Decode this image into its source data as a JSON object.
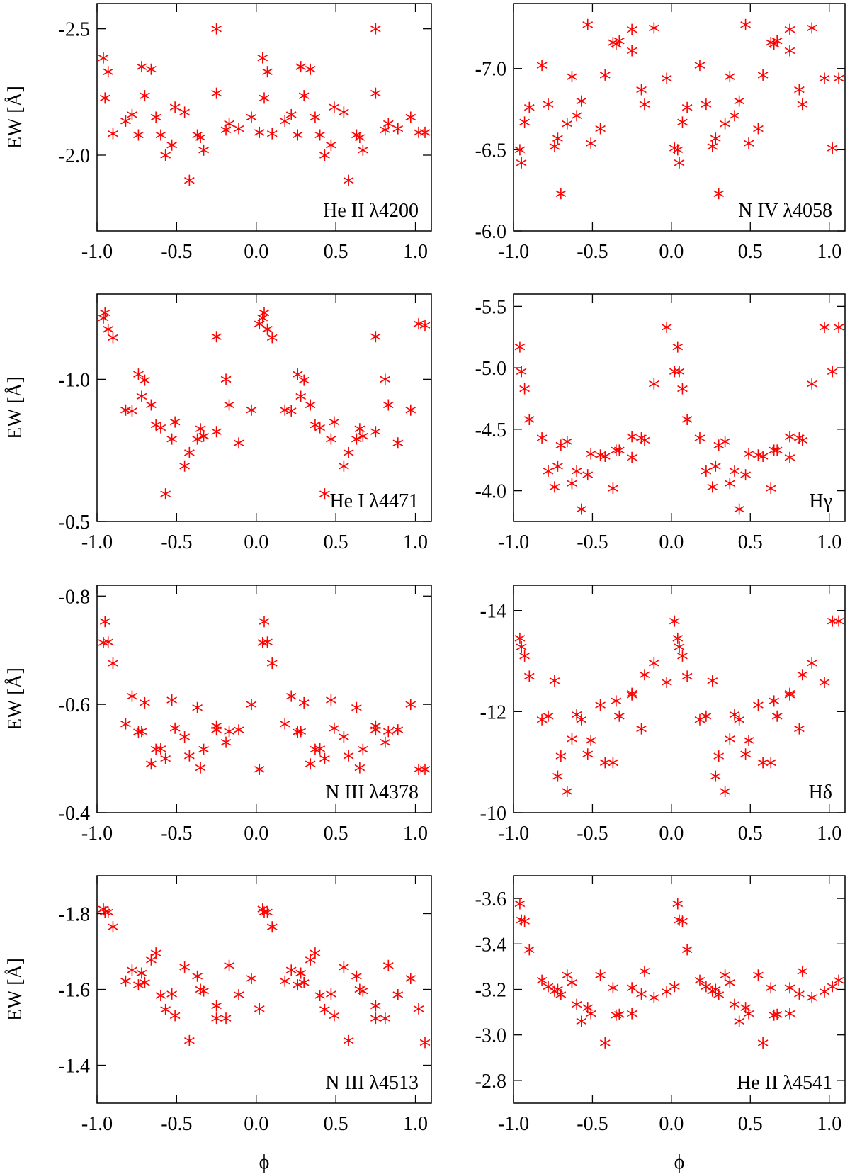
{
  "chart_data": [
    {
      "type": "scatter",
      "annotation": "He II λ4200",
      "ylabel": "EW [Å]",
      "color": "#ff0000",
      "x": [
        -0.96,
        -0.95,
        -0.93,
        -0.9,
        -0.82,
        -0.78,
        -0.74,
        -0.72,
        -0.7,
        -0.66,
        -0.63,
        -0.6,
        -0.57,
        -0.53,
        -0.51,
        -0.45,
        -0.42,
        -0.37,
        -0.35,
        -0.33,
        -0.25,
        -0.25,
        -0.19,
        -0.17,
        -0.11,
        -0.03,
        0.02,
        0.04,
        0.05,
        0.07,
        0.1,
        0.18,
        0.22,
        0.26,
        0.28,
        0.3,
        0.34,
        0.37,
        0.4,
        0.43,
        0.47,
        0.49,
        0.55,
        0.58,
        0.63,
        0.65,
        0.67,
        0.75,
        0.75,
        0.81,
        0.83,
        0.89,
        0.97,
        1.02,
        1.06
      ],
      "values": [
        -2.385,
        -2.226,
        -2.33,
        -2.085,
        -2.135,
        -2.16,
        -2.08,
        -2.35,
        -2.235,
        -2.34,
        -2.15,
        -2.08,
        -2.0,
        -2.04,
        -2.19,
        -2.17,
        -1.9,
        -2.08,
        -2.07,
        -2.02,
        -2.245,
        -2.5,
        -2.1,
        -2.125,
        -2.105,
        -2.15,
        -2.09,
        -2.385,
        -2.226,
        -2.33,
        -2.085,
        -2.135,
        -2.16,
        -2.08,
        -2.35,
        -2.235,
        -2.34,
        -2.15,
        -2.08,
        -2.0,
        -2.04,
        -2.19,
        -2.17,
        -1.9,
        -2.08,
        -2.07,
        -2.02,
        -2.245,
        -2.5,
        -2.1,
        -2.125,
        -2.105,
        -2.15,
        -2.09,
        -2.09
      ],
      "xlim": [
        -1.0,
        1.1
      ],
      "xticks": [
        {
          "value": -1,
          "label": "-1.0"
        },
        {
          "value": -0.5,
          "label": "-0.5"
        },
        {
          "value": 0,
          "label": "0.0"
        },
        {
          "value": 0.5,
          "label": "0.5"
        },
        {
          "value": 1,
          "label": "1.0"
        }
      ],
      "ylim": [
        -1.7,
        -2.6
      ],
      "yticks": [
        {
          "value": -2.5,
          "label": "-2.5"
        },
        {
          "value": -2,
          "label": "-2.0"
        }
      ]
    },
    {
      "type": "scatter",
      "annotation": "N IV λ4058",
      "color": "#ff0000",
      "x": [
        -0.96,
        -0.95,
        -0.93,
        -0.9,
        -0.82,
        -0.78,
        -0.74,
        -0.72,
        -0.7,
        -0.66,
        -0.63,
        -0.6,
        -0.57,
        -0.53,
        -0.51,
        -0.45,
        -0.42,
        -0.37,
        -0.35,
        -0.33,
        -0.25,
        -0.25,
        -0.19,
        -0.17,
        -0.11,
        -0.03,
        0.02,
        0.04,
        0.05,
        0.07,
        0.1,
        0.18,
        0.22,
        0.26,
        0.28,
        0.3,
        0.34,
        0.37,
        0.4,
        0.43,
        0.47,
        0.49,
        0.55,
        0.58,
        0.63,
        0.65,
        0.67,
        0.75,
        0.75,
        0.81,
        0.83,
        0.89,
        0.97,
        1.02,
        1.06
      ],
      "values": [
        -6.5,
        -6.42,
        -6.67,
        -6.76,
        -7.02,
        -6.78,
        -6.52,
        -6.57,
        -6.23,
        -6.66,
        -6.95,
        -6.71,
        -6.8,
        -7.27,
        -6.54,
        -6.63,
        -6.96,
        -7.16,
        -7.15,
        -7.17,
        -7.11,
        -7.24,
        -6.87,
        -6.78,
        -7.25,
        -6.94,
        -6.51,
        -6.5,
        -6.42,
        -6.67,
        -6.76,
        -7.02,
        -6.78,
        -6.52,
        -6.57,
        -6.23,
        -6.66,
        -6.95,
        -6.71,
        -6.8,
        -7.27,
        -6.54,
        -6.63,
        -6.96,
        -7.16,
        -7.15,
        -7.17,
        -7.11,
        -7.24,
        -6.87,
        -6.78,
        -7.25,
        -6.94,
        -6.51,
        -6.94
      ],
      "xlim": [
        -1.0,
        1.1
      ],
      "xticks": [
        {
          "value": -1,
          "label": "-1.0"
        },
        {
          "value": -0.5,
          "label": "-0.5"
        },
        {
          "value": 0,
          "label": "0.0"
        },
        {
          "value": 0.5,
          "label": "0.5"
        },
        {
          "value": 1,
          "label": "1.0"
        }
      ],
      "ylim": [
        -6.0,
        -7.4
      ],
      "yticks": [
        {
          "value": -7,
          "label": "-7.0"
        },
        {
          "value": -6.5,
          "label": "-6.5"
        },
        {
          "value": -6,
          "label": "-6.0"
        }
      ]
    },
    {
      "type": "scatter",
      "annotation": "He I λ4471",
      "ylabel": "EW [Å]",
      "color": "#ff0000",
      "x": [
        -0.96,
        -0.95,
        -0.93,
        -0.9,
        -0.82,
        -0.78,
        -0.74,
        -0.72,
        -0.7,
        -0.66,
        -0.63,
        -0.6,
        -0.57,
        -0.53,
        -0.51,
        -0.45,
        -0.42,
        -0.37,
        -0.35,
        -0.33,
        -0.25,
        -0.25,
        -0.19,
        -0.17,
        -0.11,
        -0.03,
        0.02,
        0.04,
        0.05,
        0.07,
        0.1,
        0.18,
        0.22,
        0.26,
        0.28,
        0.3,
        0.34,
        0.37,
        0.4,
        0.43,
        0.47,
        0.49,
        0.55,
        0.58,
        0.63,
        0.65,
        0.67,
        0.75,
        0.75,
        0.81,
        0.83,
        0.89,
        0.97,
        1.02,
        1.06
      ],
      "values": [
        -1.216,
        -1.234,
        -1.176,
        -1.147,
        -0.892,
        -0.889,
        -1.018,
        -0.94,
        -0.997,
        -0.91,
        -0.84,
        -0.83,
        -0.597,
        -0.79,
        -0.85,
        -0.695,
        -0.742,
        -0.79,
        -0.826,
        -0.8,
        -1.15,
        -0.816,
        -1.0,
        -0.91,
        -0.776,
        -0.892,
        -1.195,
        -1.216,
        -1.234,
        -1.176,
        -1.147,
        -0.892,
        -0.889,
        -1.018,
        -0.94,
        -0.997,
        -0.91,
        -0.84,
        -0.83,
        -0.597,
        -0.79,
        -0.85,
        -0.695,
        -0.742,
        -0.79,
        -0.826,
        -0.8,
        -1.15,
        -0.816,
        -1.0,
        -0.91,
        -0.776,
        -0.892,
        -1.195,
        -1.19
      ],
      "xlim": [
        -1.0,
        1.1
      ],
      "xticks": [
        {
          "value": -1,
          "label": "-1.0"
        },
        {
          "value": -0.5,
          "label": "-0.5"
        },
        {
          "value": 0,
          "label": "0.0"
        },
        {
          "value": 0.5,
          "label": "0.5"
        },
        {
          "value": 1,
          "label": "1.0"
        }
      ],
      "ylim": [
        -0.5,
        -1.3
      ],
      "yticks": [
        {
          "value": -1,
          "label": "-1.0"
        },
        -0.5
      ]
    },
    {
      "type": "scatter",
      "annotation": "Hγ",
      "color": "#ff0000",
      "x": [
        -0.96,
        -0.95,
        -0.93,
        -0.9,
        -0.82,
        -0.78,
        -0.74,
        -0.72,
        -0.7,
        -0.66,
        -0.63,
        -0.6,
        -0.57,
        -0.53,
        -0.51,
        -0.45,
        -0.42,
        -0.37,
        -0.35,
        -0.33,
        -0.25,
        -0.25,
        -0.19,
        -0.17,
        -0.11,
        -0.03,
        0.02,
        0.04,
        0.05,
        0.07,
        0.1,
        0.18,
        0.22,
        0.26,
        0.28,
        0.3,
        0.34,
        0.37,
        0.4,
        0.43,
        0.47,
        0.49,
        0.55,
        0.58,
        0.63,
        0.65,
        0.67,
        0.75,
        0.75,
        0.81,
        0.83,
        0.89,
        0.97,
        1.02,
        1.06
      ],
      "values": [
        -5.17,
        -4.97,
        -4.83,
        -4.58,
        -4.43,
        -4.16,
        -4.03,
        -4.2,
        -4.37,
        -4.4,
        -4.06,
        -4.16,
        -3.85,
        -4.13,
        -4.3,
        -4.29,
        -4.28,
        -4.02,
        -4.33,
        -4.33,
        -4.44,
        -4.27,
        -4.43,
        -4.41,
        -4.87,
        -5.33,
        -4.97,
        -5.17,
        -4.97,
        -4.83,
        -4.58,
        -4.43,
        -4.16,
        -4.03,
        -4.2,
        -4.37,
        -4.4,
        -4.06,
        -4.16,
        -3.85,
        -4.13,
        -4.3,
        -4.29,
        -4.28,
        -4.02,
        -4.33,
        -4.33,
        -4.44,
        -4.27,
        -4.43,
        -4.41,
        -4.87,
        -5.33,
        -4.97,
        -5.33
      ],
      "xlim": [
        -1.0,
        1.1
      ],
      "xticks": [
        {
          "value": -1,
          "label": "-1.0"
        },
        {
          "value": -0.5,
          "label": "-0.5"
        },
        {
          "value": 0,
          "label": "0.0"
        },
        {
          "value": 0.5,
          "label": "0.5"
        },
        {
          "value": 1,
          "label": "1.0"
        }
      ],
      "ylim": [
        -3.75,
        -5.6
      ],
      "yticks": [
        -5.5,
        {
          "value": -5,
          "label": "-5.0"
        },
        -4.5,
        {
          "value": -4,
          "label": "-4.0"
        }
      ]
    },
    {
      "type": "scatter",
      "annotation": "N III λ4378",
      "ylabel": "EW [Å]",
      "color": "#ff0000",
      "x": [
        -0.96,
        -0.95,
        -0.93,
        -0.9,
        -0.82,
        -0.78,
        -0.74,
        -0.72,
        -0.7,
        -0.66,
        -0.63,
        -0.6,
        -0.57,
        -0.53,
        -0.51,
        -0.45,
        -0.42,
        -0.37,
        -0.35,
        -0.33,
        -0.25,
        -0.25,
        -0.19,
        -0.17,
        -0.11,
        -0.03,
        0.02,
        0.04,
        0.05,
        0.07,
        0.1,
        0.18,
        0.22,
        0.26,
        0.28,
        0.3,
        0.34,
        0.37,
        0.4,
        0.43,
        0.47,
        0.49,
        0.55,
        0.58,
        0.63,
        0.65,
        0.67,
        0.75,
        0.75,
        0.81,
        0.83,
        0.89,
        0.97,
        1.02,
        1.06
      ],
      "values": [
        -0.714,
        -0.753,
        -0.715,
        -0.676,
        -0.564,
        -0.615,
        -0.549,
        -0.55,
        -0.603,
        -0.49,
        -0.517,
        -0.518,
        -0.5,
        -0.608,
        -0.556,
        -0.54,
        -0.505,
        -0.594,
        -0.483,
        -0.517,
        -0.56,
        -0.553,
        -0.53,
        -0.55,
        -0.553,
        -0.6,
        -0.48,
        -0.714,
        -0.753,
        -0.715,
        -0.676,
        -0.564,
        -0.615,
        -0.549,
        -0.55,
        -0.603,
        -0.49,
        -0.517,
        -0.518,
        -0.5,
        -0.608,
        -0.556,
        -0.54,
        -0.505,
        -0.594,
        -0.483,
        -0.517,
        -0.56,
        -0.553,
        -0.53,
        -0.55,
        -0.553,
        -0.6,
        -0.48,
        -0.48
      ],
      "xlim": [
        -1.0,
        1.1
      ],
      "xticks": [
        {
          "value": -1,
          "label": "-1.0"
        },
        {
          "value": -0.5,
          "label": "-0.5"
        },
        {
          "value": 0,
          "label": "0.0"
        },
        {
          "value": 0.5,
          "label": "0.5"
        },
        {
          "value": 1,
          "label": "1.0"
        }
      ],
      "ylim": [
        -0.4,
        -0.82
      ],
      "yticks": [
        -0.8,
        -0.6,
        -0.4
      ]
    },
    {
      "type": "scatter",
      "annotation": "Hδ",
      "color": "#ff0000",
      "x": [
        -0.96,
        -0.95,
        -0.93,
        -0.9,
        -0.82,
        -0.78,
        -0.74,
        -0.72,
        -0.7,
        -0.66,
        -0.63,
        -0.6,
        -0.57,
        -0.53,
        -0.51,
        -0.45,
        -0.42,
        -0.37,
        -0.35,
        -0.33,
        -0.25,
        -0.25,
        -0.19,
        -0.17,
        -0.11,
        -0.03,
        0.02,
        0.04,
        0.05,
        0.07,
        0.1,
        0.18,
        0.22,
        0.26,
        0.28,
        0.3,
        0.34,
        0.37,
        0.4,
        0.43,
        0.47,
        0.49,
        0.55,
        0.58,
        0.63,
        0.65,
        0.67,
        0.75,
        0.75,
        0.81,
        0.83,
        0.89,
        0.97,
        1.02,
        1.06
      ],
      "values": [
        -13.45,
        -13.28,
        -13.1,
        -12.7,
        -11.84,
        -11.91,
        -12.61,
        -10.72,
        -11.12,
        -10.42,
        -11.46,
        -11.94,
        -11.84,
        -11.16,
        -11.43,
        -12.13,
        -10.99,
        -10.99,
        -12.21,
        -11.91,
        -12.33,
        -12.36,
        -11.66,
        -12.73,
        -12.96,
        -12.58,
        -13.79,
        -13.45,
        -13.28,
        -13.1,
        -12.7,
        -11.84,
        -11.91,
        -12.61,
        -10.72,
        -11.12,
        -10.42,
        -11.46,
        -11.94,
        -11.84,
        -11.16,
        -11.43,
        -12.13,
        -10.99,
        -10.99,
        -12.21,
        -11.91,
        -12.33,
        -12.36,
        -11.66,
        -12.73,
        -12.96,
        -12.58,
        -13.79,
        -13.79
      ],
      "xlim": [
        -1.0,
        1.1
      ],
      "xticks": [
        {
          "value": -1,
          "label": "-1.0"
        },
        {
          "value": -0.5,
          "label": "-0.5"
        },
        {
          "value": 0,
          "label": "0.0"
        },
        {
          "value": 0.5,
          "label": "0.5"
        },
        {
          "value": 1,
          "label": "1.0"
        }
      ],
      "ylim": [
        -10,
        -14.5
      ],
      "yticks": [
        -14,
        -12,
        -10
      ]
    },
    {
      "type": "scatter",
      "annotation": "N III λ4513",
      "ylabel": "EW [Å]",
      "xlabel": "ϕ",
      "color": "#ff0000",
      "x": [
        -0.96,
        -0.95,
        -0.93,
        -0.9,
        -0.82,
        -0.78,
        -0.74,
        -0.72,
        -0.7,
        -0.66,
        -0.63,
        -0.6,
        -0.57,
        -0.53,
        -0.51,
        -0.45,
        -0.42,
        -0.37,
        -0.35,
        -0.33,
        -0.25,
        -0.25,
        -0.19,
        -0.17,
        -0.11,
        -0.03,
        0.02,
        0.04,
        0.05,
        0.07,
        0.1,
        0.18,
        0.22,
        0.26,
        0.28,
        0.3,
        0.34,
        0.37,
        0.4,
        0.43,
        0.47,
        0.49,
        0.55,
        0.58,
        0.63,
        0.65,
        0.67,
        0.75,
        0.75,
        0.81,
        0.83,
        0.89,
        0.97,
        1.02,
        1.06
      ],
      "values": [
        -1.812,
        -1.804,
        -1.804,
        -1.765,
        -1.622,
        -1.651,
        -1.612,
        -1.643,
        -1.618,
        -1.678,
        -1.696,
        -1.584,
        -1.547,
        -1.588,
        -1.531,
        -1.659,
        -1.465,
        -1.635,
        -1.6,
        -1.596,
        -1.557,
        -1.524,
        -1.524,
        -1.663,
        -1.586,
        -1.629,
        -1.549,
        -1.812,
        -1.804,
        -1.804,
        -1.765,
        -1.622,
        -1.651,
        -1.612,
        -1.643,
        -1.618,
        -1.678,
        -1.696,
        -1.584,
        -1.547,
        -1.588,
        -1.531,
        -1.659,
        -1.465,
        -1.635,
        -1.6,
        -1.596,
        -1.557,
        -1.524,
        -1.524,
        -1.663,
        -1.586,
        -1.629,
        -1.549,
        -1.46
      ],
      "xlim": [
        -1.0,
        1.1
      ],
      "xticks": [
        {
          "value": -1,
          "label": "-1.0"
        },
        {
          "value": -0.5,
          "label": "-0.5"
        },
        {
          "value": 0,
          "label": "0.0"
        },
        {
          "value": 0.5,
          "label": "0.5"
        },
        {
          "value": 1,
          "label": "1.0"
        }
      ],
      "ylim": [
        -1.3,
        -1.9
      ],
      "yticks": [
        -1.8,
        -1.6,
        -1.4
      ]
    },
    {
      "type": "scatter",
      "annotation": "He II λ4541",
      "xlabel": "ϕ",
      "color": "#ff0000",
      "x": [
        -0.96,
        -0.95,
        -0.93,
        -0.9,
        -0.82,
        -0.78,
        -0.74,
        -0.72,
        -0.7,
        -0.66,
        -0.63,
        -0.6,
        -0.57,
        -0.53,
        -0.51,
        -0.45,
        -0.42,
        -0.37,
        -0.35,
        -0.33,
        -0.25,
        -0.25,
        -0.19,
        -0.17,
        -0.11,
        -0.03,
        0.02,
        0.04,
        0.05,
        0.07,
        0.1,
        0.18,
        0.22,
        0.26,
        0.28,
        0.3,
        0.34,
        0.37,
        0.4,
        0.43,
        0.47,
        0.49,
        0.55,
        0.58,
        0.63,
        0.65,
        0.67,
        0.75,
        0.75,
        0.81,
        0.83,
        0.89,
        0.97,
        1.02,
        1.06
      ],
      "values": [
        -3.577,
        -3.505,
        -3.5,
        -3.375,
        -3.24,
        -3.213,
        -3.193,
        -3.2,
        -3.177,
        -3.263,
        -3.23,
        -3.134,
        -3.06,
        -3.12,
        -3.094,
        -3.263,
        -2.965,
        -3.207,
        -3.087,
        -3.09,
        -3.094,
        -3.207,
        -3.18,
        -3.28,
        -3.164,
        -3.19,
        -3.213,
        -3.577,
        -3.505,
        -3.5,
        -3.375,
        -3.24,
        -3.213,
        -3.193,
        -3.2,
        -3.177,
        -3.263,
        -3.23,
        -3.134,
        -3.06,
        -3.12,
        -3.094,
        -3.263,
        -2.965,
        -3.207,
        -3.087,
        -3.09,
        -3.094,
        -3.207,
        -3.18,
        -3.28,
        -3.164,
        -3.19,
        -3.213,
        -3.24
      ],
      "xlim": [
        -1.0,
        1.1
      ],
      "xticks": [
        {
          "value": -1,
          "label": "-1.0"
        },
        {
          "value": -0.5,
          "label": "-0.5"
        },
        {
          "value": 0,
          "label": "0.0"
        },
        {
          "value": 0.5,
          "label": "0.5"
        },
        {
          "value": 1,
          "label": "1.0"
        }
      ],
      "ylim": [
        -2.7,
        -3.7
      ],
      "yticks": [
        -3.6,
        -3.4,
        -3.2,
        {
          "value": -3,
          "label": "-3.0"
        },
        -2.8
      ]
    }
  ]
}
